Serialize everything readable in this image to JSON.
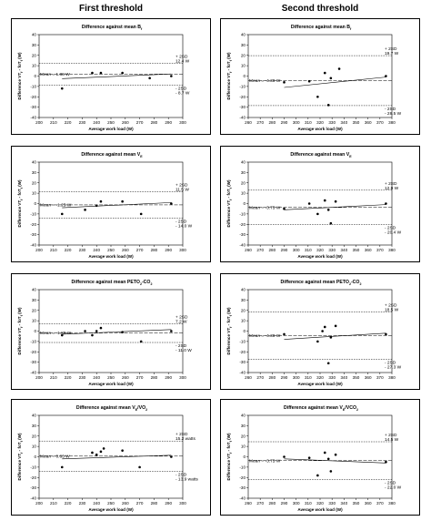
{
  "columns": {
    "left": "First threshold",
    "right": "Second threshold"
  },
  "chart_data": [
    {
      "type": "scatter",
      "title": "Difference against mean B",
      "title_sub": "f",
      "xlabel": "Average work load (W)",
      "ylabel": "Difference VT",
      "ylabel_sub": "f",
      "ylabel_post": " - foT",
      "ylabel_sub2": "f",
      "ylabel_unit": " (W)",
      "xlim": [
        200,
        300
      ],
      "ylim": [
        -40,
        40
      ],
      "xstep": 10,
      "ystep": 10,
      "x": [
        216,
        237,
        243,
        258,
        277,
        292
      ],
      "y": [
        -12,
        3,
        3,
        3,
        -2,
        0
      ],
      "trend": [
        [
          216,
          -2.5
        ],
        [
          292,
          2
        ]
      ],
      "mean_label": "Mean = 1.88 W",
      "mean": 1.88,
      "upper_label": "+ 2SD",
      "upper_value_label": "12.4 W",
      "upper": 12.4,
      "lower_label": "- 2SD",
      "lower_value_label": "- 8.7 W",
      "lower": -8.7
    },
    {
      "type": "scatter",
      "title": "Difference against mean B",
      "title_sub": "f",
      "xlabel": "Average work load (W)",
      "ylabel": "Difference VT",
      "ylabel_sub": "f",
      "ylabel_post": " - foT",
      "ylabel_sub2": "f",
      "ylabel_unit": " (W)",
      "xlim": [
        260,
        380
      ],
      "ylim": [
        -40,
        40
      ],
      "xstep": 10,
      "ystep": 10,
      "x": [
        290,
        311,
        318,
        324,
        327,
        329,
        336,
        375
      ],
      "y": [
        -6,
        -5,
        -20,
        3,
        -28,
        -2,
        7,
        0
      ],
      "trend": [
        [
          290,
          -11
        ],
        [
          375,
          -1
        ]
      ],
      "mean_label": "Mean = -4.38 W",
      "mean": -4.38,
      "upper_label": "+ 2SD",
      "upper_value_label": "19.7 W",
      "upper": 19.7,
      "lower_label": "- 2SD",
      "lower_value_label": "- 28.5 W",
      "lower": -28.5
    },
    {
      "type": "scatter",
      "title": "Difference against mean V",
      "title_sub": "E",
      "xlabel": "Average work load (W)",
      "ylabel": "Difference VT",
      "ylabel_sub": "f",
      "ylabel_post": " - foT",
      "ylabel_sub2": "f",
      "ylabel_unit": " (W)",
      "xlim": [
        200,
        300
      ],
      "ylim": [
        -40,
        40
      ],
      "xstep": 10,
      "ystep": 10,
      "x": [
        216,
        232,
        240,
        243,
        258,
        271,
        292
      ],
      "y": [
        -10,
        -6,
        -2,
        2,
        2,
        -10,
        0
      ],
      "trend": [
        [
          216,
          -4
        ],
        [
          292,
          1
        ]
      ],
      "mean_label": "Mean = -1.25 W",
      "mean": -1.25,
      "upper_label": "+ 2SD",
      "upper_value_label": "11.5 W",
      "upper": 11.5,
      "lower_label": "- 2SD",
      "lower_value_label": "- 14.0 W",
      "lower": -14.0
    },
    {
      "type": "scatter",
      "title": "Difference against mean V",
      "title_sub": "E",
      "xlabel": "Average work load (W)",
      "ylabel": "Difference VT",
      "ylabel_sub": "f",
      "ylabel_post": " - foT",
      "ylabel_sub2": "f",
      "ylabel_unit": " (W)",
      "xlim": [
        260,
        380
      ],
      "ylim": [
        -40,
        40
      ],
      "xstep": 10,
      "ystep": 10,
      "x": [
        290,
        311,
        318,
        324,
        327,
        329,
        333,
        375
      ],
      "y": [
        -5,
        0,
        -10,
        3,
        -6,
        -19,
        2,
        0
      ],
      "trend": [
        [
          290,
          -6
        ],
        [
          375,
          -1
        ]
      ],
      "mean_label": "Mean = -3.75 W",
      "mean": -3.75,
      "upper_label": "+ 2SD",
      "upper_value_label": "12.9 W",
      "upper": 12.9,
      "lower_label": "- 2SD",
      "lower_value_label": "- 20.4 W",
      "lower": -20.4
    },
    {
      "type": "scatter",
      "title": "Difference against mean PETO",
      "title_sub": "2",
      "title_post": "-CO",
      "title_sub2": "2",
      "xlabel": "Average work load (W)",
      "ylabel": "Difference VT",
      "ylabel_sub": "f",
      "ylabel_post": " - foT",
      "ylabel_sub2": "f",
      "ylabel_unit": " (W)",
      "xlim": [
        200,
        300
      ],
      "ylim": [
        -40,
        40
      ],
      "xstep": 10,
      "ystep": 10,
      "x": [
        216,
        232,
        237,
        240,
        243,
        258,
        271,
        292
      ],
      "y": [
        -4,
        0,
        -4,
        0,
        3,
        -1,
        -10,
        0
      ],
      "trend": [
        [
          216,
          -3
        ],
        [
          292,
          1.5
        ]
      ],
      "mean_label": "Mean = -1.88 W",
      "mean": -1.88,
      "upper_label": "+ 2SD",
      "upper_value_label": "7.2 W",
      "upper": 7.2,
      "lower_label": "- 2SD",
      "lower_value_label": "- 11.0 W",
      "lower": -11.0
    },
    {
      "type": "scatter",
      "title": "Difference against mean PETO",
      "title_sub": "2",
      "title_post": "-CO",
      "title_sub2": "2",
      "xlabel": "Average work load (W)",
      "ylabel": "Difference VT",
      "ylabel_sub": "f",
      "ylabel_post": " - foT",
      "ylabel_sub2": "f",
      "ylabel_unit": " (W)",
      "xlim": [
        260,
        380
      ],
      "ylim": [
        -40,
        40
      ],
      "xstep": 10,
      "ystep": 10,
      "x": [
        290,
        318,
        322,
        324,
        327,
        329,
        333,
        375
      ],
      "y": [
        -3,
        -10,
        0,
        4,
        -31,
        -6,
        5,
        -3
      ],
      "trend": [
        [
          290,
          -8
        ],
        [
          375,
          -2
        ]
      ],
      "mean_label": "Mean = -4.38 W",
      "mean": -4.38,
      "upper_label": "+ 2SD",
      "upper_value_label": "18.5 W",
      "upper": 18.5,
      "lower_label": "- 2SD",
      "lower_value_label": "- 27.3 W",
      "lower": -27.3
    },
    {
      "type": "scatter",
      "title": "Difference against mean V",
      "title_sub": "E",
      "title_post": "/VO",
      "title_sub2": "2",
      "xlabel": "Average work load (W)",
      "ylabel": "Difference VT",
      "ylabel_sub": "f",
      "ylabel_post": " - foT",
      "ylabel_sub2": "f",
      "ylabel_unit": " (W)",
      "xlim": [
        200,
        300
      ],
      "ylim": [
        -40,
        40
      ],
      "xstep": 10,
      "ystep": 10,
      "x": [
        216,
        237,
        240,
        243,
        245,
        258,
        270,
        292
      ],
      "y": [
        -10,
        4,
        2,
        5,
        8,
        6,
        -10,
        0
      ],
      "trend": [
        [
          216,
          -2
        ],
        [
          292,
          1.5
        ]
      ],
      "mean_label": "Mean = 0.63 W",
      "mean": 0.63,
      "upper_label": "+ 2SD",
      "upper_value_label": "15.2 watts",
      "upper": 15.2,
      "lower_label": "- 2SD",
      "lower_value_label": "- 13.9 watts",
      "lower": -13.9
    },
    {
      "type": "scatter",
      "title": "Difference against mean V",
      "title_sub": "E",
      "title_post": "/VCO",
      "title_sub2": "2",
      "xlabel": "Average work load (W)",
      "ylabel": "Difference VT",
      "ylabel_sub": "f",
      "ylabel_post": " - foT",
      "ylabel_sub2": "f",
      "ylabel_unit": " (W)",
      "xlim": [
        260,
        380
      ],
      "ylim": [
        -40,
        40
      ],
      "xstep": 10,
      "ystep": 10,
      "x": [
        290,
        311,
        318,
        324,
        327,
        329,
        333,
        375
      ],
      "y": [
        0,
        -1,
        -18,
        4,
        -2,
        -14,
        2,
        -5
      ],
      "trend": [
        [
          290,
          -2
        ],
        [
          375,
          -6
        ]
      ],
      "mean_label": "Mean = -3.75 W",
      "mean": -3.75,
      "upper_label": "+ 2SD",
      "upper_value_label": "14.5 W",
      "upper": 14.5,
      "lower_label": "- 2SD",
      "lower_value_label": "- 22.0 W",
      "lower": -22.0
    }
  ]
}
